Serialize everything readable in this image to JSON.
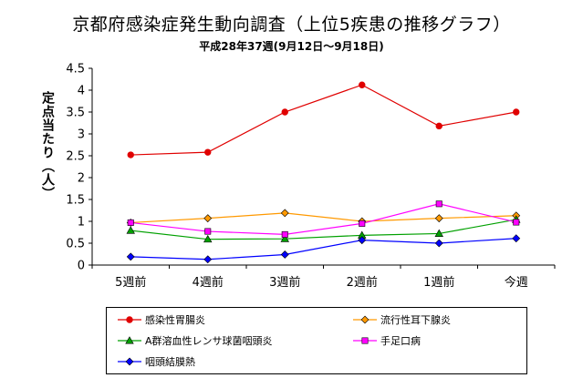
{
  "chart_data": {
    "type": "line",
    "title": "京都府感染症発生動向調査（上位5疾患の推移グラフ）",
    "subtitle": "平成28年37週(9月12日～9月18日)",
    "xlabel": "",
    "ylabel": "定点当たり（人）",
    "categories": [
      "5週前",
      "4週前",
      "3週前",
      "2週前",
      "1週前",
      "今週"
    ],
    "y_ticks": [
      "0",
      "0.5",
      "1",
      "1.5",
      "2",
      "2.5",
      "3",
      "3.5",
      "4",
      "4.5"
    ],
    "ylim": [
      0,
      4.5
    ],
    "grid": false,
    "legend_position": "bottom",
    "series": [
      {
        "name": "感染性胃腸炎",
        "color": "#e00000",
        "marker": "circle",
        "values": [
          2.52,
          2.58,
          3.5,
          4.12,
          3.18,
          3.5
        ]
      },
      {
        "name": "流行性耳下腺炎",
        "color": "#ff9900",
        "marker": "diamond",
        "values": [
          0.97,
          1.07,
          1.19,
          1.0,
          1.07,
          1.13
        ]
      },
      {
        "name": "A群溶血性レンサ球菌咽頭炎",
        "color": "#00a000",
        "marker": "triangle",
        "values": [
          0.79,
          0.59,
          0.6,
          0.68,
          0.72,
          1.04
        ]
      },
      {
        "name": "手足口病",
        "color": "#ff00ff",
        "marker": "square",
        "values": [
          0.97,
          0.77,
          0.7,
          0.95,
          1.4,
          0.98
        ]
      },
      {
        "name": "咽頭結膜熱",
        "color": "#0000ff",
        "marker": "diamond",
        "values": [
          0.19,
          0.13,
          0.24,
          0.57,
          0.5,
          0.61
        ]
      }
    ]
  }
}
